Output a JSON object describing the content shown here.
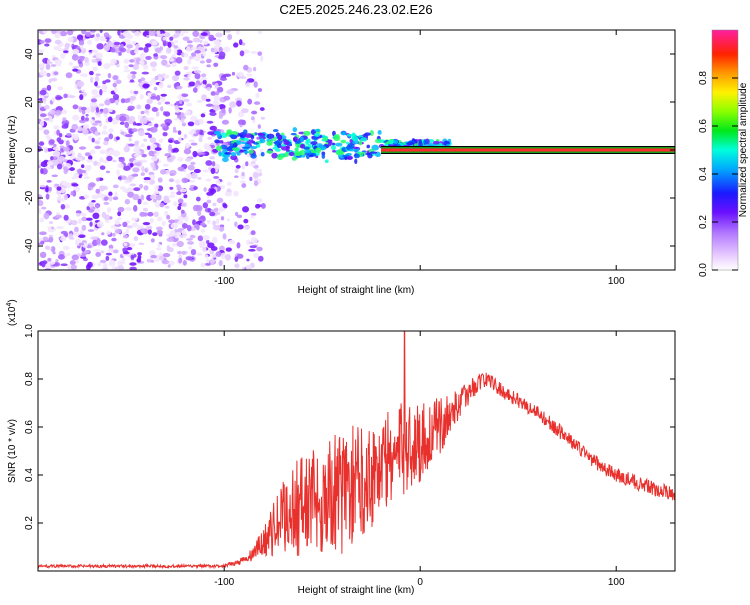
{
  "title": "C2E5.2025.246.23.02.E26",
  "colors": {
    "snr_line": "#e8302c",
    "ridge_center": "#ff2a2a",
    "ridge_edge": "#1a9e1a"
  },
  "chart_data": [
    {
      "type": "heatmap",
      "name": "spectrogram",
      "xlabel": "Height of straight line (km)",
      "ylabel": "Frequency (Hz)",
      "xlim": [
        -195,
        130
      ],
      "ylim": [
        -50,
        50
      ],
      "xticks": [
        -100,
        0,
        100
      ],
      "xtick_labels": [
        "-100",
        "",
        "100"
      ],
      "yticks": [
        -40,
        -20,
        0,
        20,
        40
      ],
      "ytick_labels": [
        "-40",
        "-20",
        "0",
        "20",
        "40"
      ],
      "noise_region_x": [
        -195,
        -80
      ],
      "ridge_start_x": -105,
      "steady_tone_x": [
        -20,
        130
      ],
      "colorbar": {
        "label": "Normalized spectral amplitude",
        "range": [
          0,
          1
        ],
        "ticks": [
          0.0,
          0.2,
          0.4,
          0.6,
          0.8
        ],
        "tick_labels": [
          "0.0",
          "0.2",
          "0.4",
          "0.6",
          "0.8"
        ]
      }
    },
    {
      "type": "line",
      "name": "snr",
      "xlabel": "Height of straight line (km)",
      "ylabel": "SNR (10 * v/v)",
      "multiplier": "(x10",
      "multiplier_exp": "4",
      "xlim": [
        -195,
        130
      ],
      "ylim": [
        0,
        1.0
      ],
      "xticks": [
        -100,
        0,
        100
      ],
      "xtick_labels": [
        "-100",
        "0",
        "100"
      ],
      "yticks": [
        0.2,
        0.4,
        0.6,
        0.8,
        1.0
      ],
      "ytick_labels": [
        "0.2",
        "0.4",
        "0.6",
        "0.8",
        "1.0"
      ],
      "envelope": {
        "x": [
          -195,
          -100,
          -88,
          -80,
          -74,
          -68,
          -60,
          -50,
          -40,
          -30,
          -20,
          -10,
          0,
          10,
          20,
          30,
          35,
          40,
          50,
          60,
          70,
          80,
          90,
          100,
          110,
          120,
          130
        ],
        "base": [
          0.02,
          0.02,
          0.05,
          0.12,
          0.18,
          0.24,
          0.28,
          0.3,
          0.33,
          0.38,
          0.44,
          0.5,
          0.54,
          0.6,
          0.7,
          0.79,
          0.8,
          0.76,
          0.71,
          0.66,
          0.59,
          0.52,
          0.45,
          0.4,
          0.37,
          0.34,
          0.32
        ],
        "amp": [
          0.006,
          0.006,
          0.02,
          0.06,
          0.12,
          0.18,
          0.22,
          0.24,
          0.26,
          0.24,
          0.22,
          0.2,
          0.18,
          0.12,
          0.06,
          0.04,
          0.03,
          0.03,
          0.03,
          0.03,
          0.03,
          0.03,
          0.03,
          0.03,
          0.03,
          0.03,
          0.03
        ]
      }
    }
  ]
}
